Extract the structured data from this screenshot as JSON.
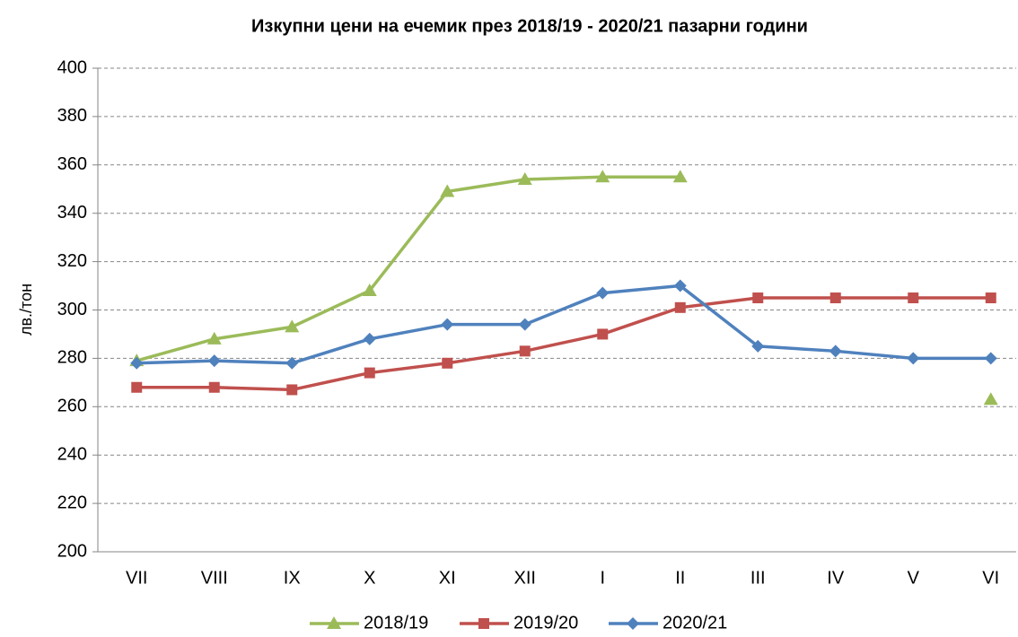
{
  "chart_data": {
    "type": "line",
    "title": "Изкупни цени на ечемик през 2018/19 - 2020/21 пазарни години",
    "y_label": "лв./тон",
    "categories": [
      "VII",
      "VIII",
      "IX",
      "X",
      "XI",
      "XII",
      "I",
      "II",
      "III",
      "IV",
      "V",
      "VI"
    ],
    "series": [
      {
        "name": "2018/19",
        "color": "#9bbb59",
        "marker": "triangle",
        "values": [
          279,
          288,
          293,
          308,
          349,
          354,
          355,
          355,
          null,
          null,
          null,
          263
        ]
      },
      {
        "name": "2019/20",
        "color": "#c0504d",
        "marker": "square",
        "values": [
          268,
          268,
          267,
          274,
          278,
          283,
          290,
          301,
          305,
          305,
          305,
          305
        ]
      },
      {
        "name": "2020/21",
        "color": "#4f81bd",
        "marker": "diamond",
        "values": [
          278,
          279,
          278,
          288,
          294,
          294,
          307,
          310,
          285,
          283,
          280,
          280
        ]
      }
    ],
    "ylim": [
      200,
      400
    ],
    "yticks": [
      200,
      220,
      240,
      260,
      280,
      300,
      320,
      340,
      360,
      380,
      400
    ],
    "grid": true,
    "legend": "bottom"
  }
}
